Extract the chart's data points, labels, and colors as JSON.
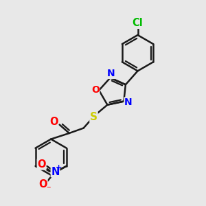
{
  "background_color": "#e8e8e8",
  "bond_color": "#1a1a1a",
  "bond_width": 1.8,
  "atom_colors": {
    "Cl": "#00bb00",
    "O": "#ff0000",
    "N": "#0000ff",
    "S": "#cccc00"
  },
  "figsize": [
    3.0,
    3.0
  ],
  "dpi": 100,
  "xlim": [
    0,
    10
  ],
  "ylim": [
    0,
    10
  ]
}
